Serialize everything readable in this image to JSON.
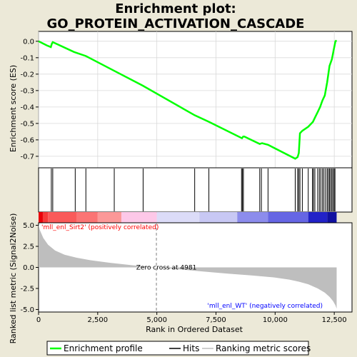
{
  "chart_data": {
    "type": "line",
    "title_line1": "Enrichment plot:",
    "title_line2": "GO_PROTEIN_ACTIVATION_CASCADE",
    "xlabel": "Rank in Ordered Dataset",
    "xlim": [
      0,
      13250
    ],
    "x_ticks": [
      0,
      2500,
      5000,
      7500,
      10000,
      12500
    ],
    "x_tick_labels": [
      "0",
      "2,500",
      "5,000",
      "7,500",
      "10,000",
      "12,500"
    ],
    "enrichment": {
      "ylabel": "Enrichment score (ES)",
      "ylim": [
        -0.77,
        0.06
      ],
      "y_ticks": [
        0.0,
        -0.1,
        -0.2,
        -0.3,
        -0.4,
        -0.5,
        -0.6,
        -0.7
      ],
      "y_tick_labels": [
        "0.0",
        "-0.1",
        "-0.2",
        "-0.3",
        "-0.4",
        "-0.5",
        "-0.6",
        "-0.7"
      ],
      "color": "#00FF00",
      "x": [
        0,
        350,
        520,
        560,
        600,
        1500,
        2000,
        3200,
        4400,
        6600,
        7200,
        8600,
        8650,
        8700,
        9350,
        9450,
        9700,
        10850,
        10950,
        11000,
        11050,
        11150,
        11400,
        11600,
        11700,
        11800,
        11900,
        12000,
        12100,
        12200,
        12300,
        12400,
        12480,
        12550,
        12600
      ],
      "y": [
        0.0,
        -0.025,
        -0.035,
        -0.015,
        -0.005,
        -0.065,
        -0.09,
        -0.18,
        -0.27,
        -0.45,
        -0.49,
        -0.59,
        -0.58,
        -0.58,
        -0.625,
        -0.62,
        -0.63,
        -0.715,
        -0.705,
        -0.68,
        -0.56,
        -0.545,
        -0.52,
        -0.49,
        -0.46,
        -0.43,
        -0.4,
        -0.36,
        -0.33,
        -0.25,
        -0.15,
        -0.11,
        -0.05,
        0.0,
        0.005
      ]
    },
    "hits": {
      "x": [
        540,
        600,
        1550,
        2000,
        3200,
        4420,
        6600,
        7200,
        8580,
        8620,
        8660,
        9350,
        9420,
        9700,
        10850,
        10950,
        11000,
        11050,
        11150,
        11400,
        11580,
        11620,
        11680,
        11800,
        11870,
        11930,
        12000,
        12060,
        12130,
        12200,
        12250,
        12300,
        12350,
        12400,
        12450,
        12500,
        12530
      ]
    },
    "ranking": {
      "ylabel": "Ranked list metric (Signal2Noise)",
      "ylim": [
        -5.3,
        5.3
      ],
      "y_ticks": [
        5.0,
        2.5,
        0.0,
        -2.5,
        -5.0
      ],
      "y_tick_labels": [
        "5.0",
        "2.5",
        "0.0",
        "-2.5",
        "-5.0"
      ],
      "color": "#BEBEBE",
      "x": [
        0,
        60,
        200,
        400,
        700,
        1100,
        1600,
        2200,
        3000,
        4000,
        4981,
        6000,
        7000,
        8000,
        9000,
        10000,
        10600,
        11000,
        11400,
        11800,
        12100,
        12300,
        12450,
        12550,
        12600
      ],
      "y": [
        5.1,
        4.4,
        3.5,
        2.7,
        2.0,
        1.5,
        1.15,
        0.85,
        0.55,
        0.25,
        0.0,
        -0.25,
        -0.5,
        -0.75,
        -0.95,
        -1.2,
        -1.45,
        -1.7,
        -2.0,
        -2.5,
        -3.0,
        -3.5,
        -4.0,
        -4.5,
        -4.9
      ]
    },
    "zero_cross_label": "Zero cross at 4981",
    "positive_label": "'mll_enl_Sirt2' (positively correlated)",
    "negative_label": "'mll_enl_WT' (negatively correlated)",
    "positive_color": "#FF0000",
    "negative_color": "#0000FF",
    "legend": {
      "placement": "bottom",
      "items": [
        "Enrichment profile",
        "Hits",
        "Ranking metric scores"
      ]
    }
  }
}
